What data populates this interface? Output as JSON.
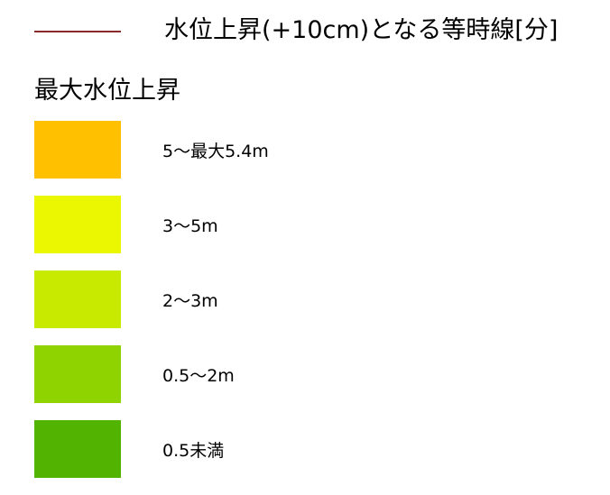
{
  "isochrone": {
    "label": "水位上昇(+10cm)となる等時線[分]",
    "line_color": "#8b2a2a"
  },
  "legend": {
    "title": "最大水位上昇",
    "items": [
      {
        "label": "5〜最大5.4m",
        "color": "#ffc000"
      },
      {
        "label": "3〜5m",
        "color": "#ebf700"
      },
      {
        "label": "2〜3m",
        "color": "#c8ea00"
      },
      {
        "label": "0.5〜2m",
        "color": "#8fd400"
      },
      {
        "label": "0.5未満",
        "color": "#52b400"
      }
    ]
  }
}
